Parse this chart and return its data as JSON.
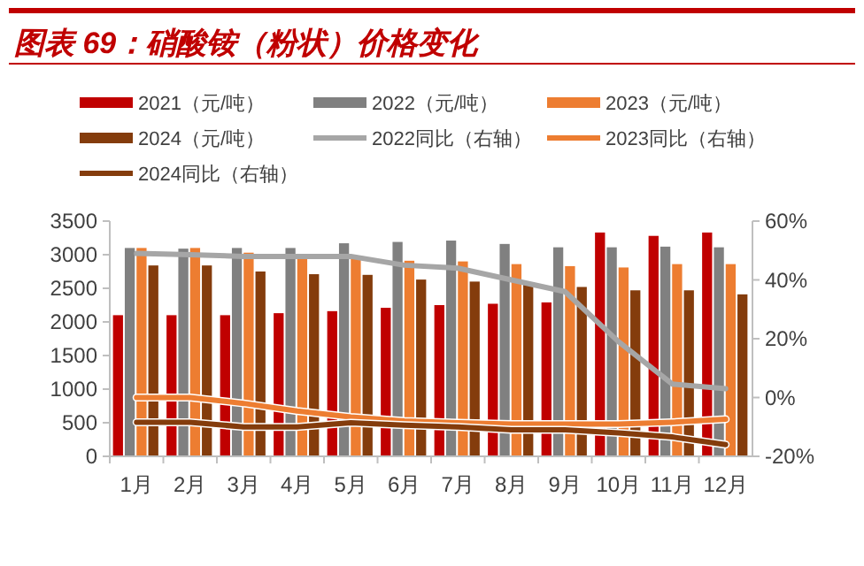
{
  "chart_data": {
    "type": "bar",
    "title": "图表 69：硝酸铵（粉状）价格变化",
    "categories": [
      "1月",
      "2月",
      "3月",
      "4月",
      "5月",
      "6月",
      "7月",
      "8月",
      "9月",
      "10月",
      "11月",
      "12月"
    ],
    "series": [
      {
        "name": "2021（元/吨）",
        "color": "#c00000",
        "values": [
          2100,
          2100,
          2100,
          2130,
          2160,
          2210,
          2250,
          2270,
          2290,
          3330,
          3280,
          3330
        ]
      },
      {
        "name": "2022（元/吨）",
        "color": "#808080",
        "values": [
          3100,
          3090,
          3100,
          3100,
          3170,
          3190,
          3210,
          3160,
          3110,
          3110,
          3120,
          3110
        ]
      },
      {
        "name": "2023（元/吨）",
        "color": "#ed7d31",
        "values": [
          3100,
          3100,
          3030,
          2950,
          2950,
          2910,
          2900,
          2860,
          2830,
          2810,
          2860,
          2860
        ]
      },
      {
        "name": "2024（元/吨）",
        "color": "#843c0c",
        "values": [
          2840,
          2840,
          2750,
          2710,
          2700,
          2630,
          2600,
          2580,
          2520,
          2470,
          2470,
          2410
        ]
      },
      {
        "name": "2022同比（右轴）",
        "type": "line",
        "axis": "y2",
        "color": "#a6a6a6",
        "values": [
          49,
          48.6,
          48,
          48,
          48,
          45,
          44,
          40,
          36,
          19,
          4.6,
          3
        ]
      },
      {
        "name": "2023同比（右轴）",
        "type": "line",
        "axis": "y2",
        "color": "#ed7d31",
        "values": [
          0,
          0,
          -2,
          -4.6,
          -6.6,
          -8,
          -8.6,
          -9,
          -9,
          -9,
          -8.4,
          -7.4
        ]
      },
      {
        "name": "2024同比（右轴）",
        "type": "line",
        "axis": "y2",
        "color": "#843c0c",
        "values": [
          -8.4,
          -8.4,
          -10,
          -10,
          -8.6,
          -9.4,
          -10,
          -11,
          -11,
          -12,
          -13.4,
          -16
        ]
      }
    ],
    "ylim": [
      0,
      3500
    ],
    "yticks": [
      0,
      500,
      1000,
      1500,
      2000,
      2500,
      3000,
      3500
    ],
    "y2lim": [
      -20,
      60
    ],
    "y2ticks": [
      {
        "value": -20,
        "label": "-20%"
      },
      {
        "value": 0,
        "label": "0%"
      },
      {
        "value": 20,
        "label": "20%"
      },
      {
        "value": 40,
        "label": "40%"
      },
      {
        "value": 60,
        "label": "60%"
      }
    ],
    "legend": "top",
    "grid": false
  }
}
